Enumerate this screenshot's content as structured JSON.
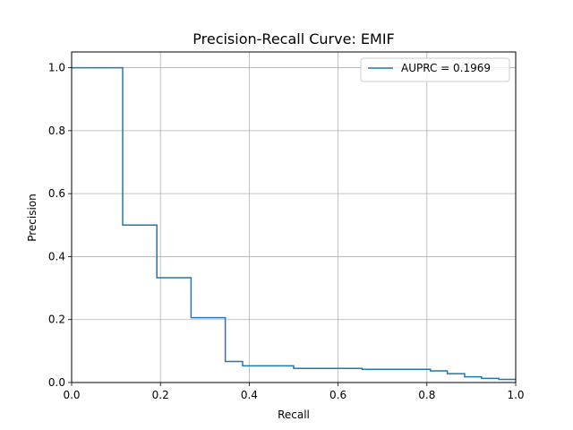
{
  "chart_data": {
    "type": "line",
    "title": "Precision-Recall Curve: EMIF",
    "xlabel": "Recall",
    "ylabel": "Precision",
    "xlim": [
      0.0,
      1.0
    ],
    "ylim": [
      0.0,
      1.05
    ],
    "grid": true,
    "step_style": "post",
    "xticks": [
      "0.0",
      "0.2",
      "0.4",
      "0.6",
      "0.8",
      "1.0"
    ],
    "yticks": [
      "0.0",
      "0.2",
      "0.4",
      "0.6",
      "0.8",
      "1.0"
    ],
    "legend_position": "top-right",
    "line_color": "#1f77b4",
    "series": [
      {
        "name": "AUPRC = 0.1969",
        "x": [
          0.0,
          0.115,
          0.115,
          0.192,
          0.192,
          0.269,
          0.269,
          0.346,
          0.346,
          0.385,
          0.385,
          0.5,
          0.5,
          0.654,
          0.654,
          0.808,
          0.808,
          0.846,
          0.846,
          0.885,
          0.885,
          0.923,
          0.923,
          0.962,
          0.962,
          1.0
        ],
        "y": [
          1.0,
          1.0,
          0.5,
          0.5,
          0.333,
          0.333,
          0.206,
          0.206,
          0.067,
          0.067,
          0.053,
          0.053,
          0.045,
          0.045,
          0.042,
          0.042,
          0.037,
          0.037,
          0.028,
          0.028,
          0.018,
          0.018,
          0.013,
          0.013,
          0.01,
          0.01
        ]
      }
    ]
  }
}
